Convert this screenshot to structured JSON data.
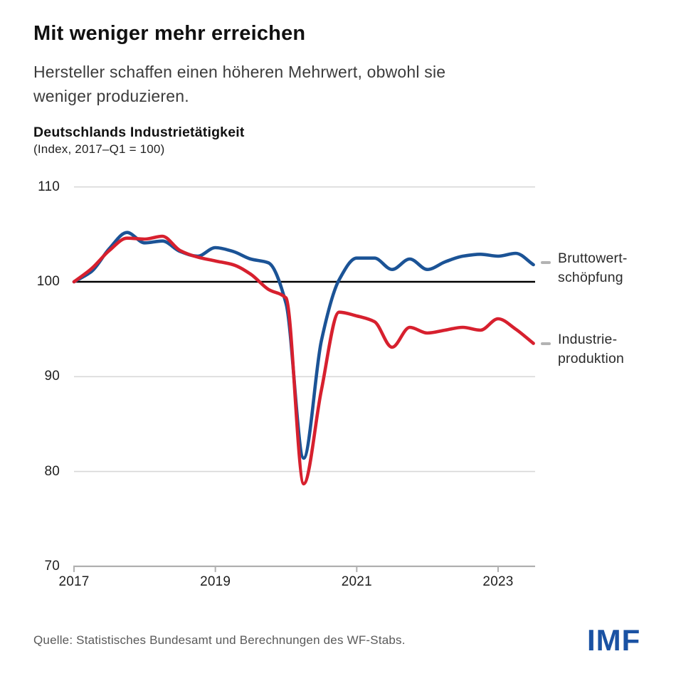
{
  "header": {
    "title": "Mit weniger mehr erreichen",
    "subtitle_lines": [
      "Hersteller schaffen einen höheren Mehrwert, obwohl sie",
      "weniger produzieren."
    ]
  },
  "chart": {
    "title": "Deutschlands Industrietätigkeit",
    "unit": "(Index, 2017–Q1 = 100)"
  },
  "chart_data": {
    "type": "line",
    "title": "Deutschlands Industrietätigkeit",
    "unit": "(Index, 2017–Q1 = 100)",
    "grid": "horizontal",
    "legend_position": "right",
    "baseline": 100,
    "ylim": [
      70,
      112
    ],
    "xlim_years": [
      2017,
      2023.75
    ],
    "x_tick_labels": [
      2017,
      2019,
      2021,
      2023
    ],
    "y_tick_labels": [
      110,
      100,
      90,
      80,
      70
    ],
    "quarters": [
      "2017-Q1",
      "2017-Q2",
      "2017-Q3",
      "2017-Q4",
      "2018-Q1",
      "2018-Q2",
      "2018-Q3",
      "2018-Q4",
      "2019-Q1",
      "2019-Q2",
      "2019-Q3",
      "2019-Q4",
      "2020-Q1",
      "2020-Q2",
      "2020-Q3",
      "2020-Q4",
      "2021-Q1",
      "2021-Q2",
      "2021-Q3",
      "2021-Q4",
      "2022-Q1",
      "2022-Q2",
      "2022-Q3",
      "2022-Q4",
      "2023-Q1",
      "2023-Q2",
      "2023-Q3"
    ],
    "series": [
      {
        "name": "Bruttowertschöpfung",
        "label_lines": [
          "Bruttowert-",
          "schöpfung"
        ],
        "color": "#1b5396",
        "values": [
          100,
          101.1,
          103.5,
          105.2,
          104.1,
          104.3,
          103.2,
          102.7,
          103.6,
          103.2,
          102.4,
          102.0,
          97.7,
          81.4,
          93.8,
          100.2,
          102.5,
          102.5,
          101.3,
          102.4,
          101.3,
          102.1,
          102.7,
          102.9,
          102.7,
          103.0,
          101.8
        ]
      },
      {
        "name": "Industrieproduktion",
        "label_lines": [
          "Industrie-",
          "produktion"
        ],
        "color": "#d7202e",
        "values": [
          100,
          101.4,
          103.3,
          104.6,
          104.5,
          104.8,
          103.3,
          102.6,
          102.2,
          101.8,
          100.8,
          99.2,
          98.3,
          78.7,
          88.6,
          96.8,
          96.4,
          95.8,
          93.1,
          95.2,
          94.6,
          94.9,
          95.2,
          94.9,
          96.1,
          95.0,
          93.5
        ]
      }
    ],
    "styles": {
      "gridline_color": "#d8d8d8",
      "baseline_color": "#000000",
      "axis_color": "#b0b0b0"
    }
  },
  "footer": {
    "source": "Quelle: Statistisches Bundesamt und Berechnungen des WF-Stabs.",
    "logo_text": "IMF",
    "logo_color": "#1a52a3"
  }
}
